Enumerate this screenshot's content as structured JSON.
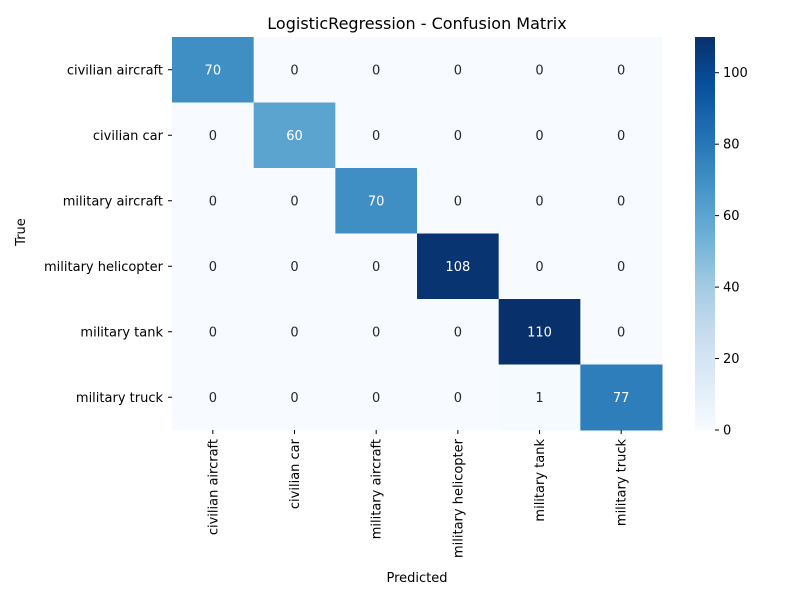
{
  "chart_data": {
    "type": "heatmap",
    "title": "LogisticRegression - Confusion Matrix",
    "xlabel": "Predicted",
    "ylabel": "True",
    "x_categories": [
      "civilian aircraft",
      "civilian car",
      "military aircraft",
      "military helicopter",
      "military tank",
      "military truck"
    ],
    "y_categories": [
      "civilian aircraft",
      "civilian car",
      "military aircraft",
      "military helicopter",
      "military tank",
      "military truck"
    ],
    "values": [
      [
        70,
        0,
        0,
        0,
        0,
        0
      ],
      [
        0,
        60,
        0,
        0,
        0,
        0
      ],
      [
        0,
        0,
        70,
        0,
        0,
        0
      ],
      [
        0,
        0,
        0,
        108,
        0,
        0
      ],
      [
        0,
        0,
        0,
        0,
        110,
        0
      ],
      [
        0,
        0,
        0,
        0,
        1,
        77
      ]
    ],
    "colormap": "Blues",
    "color_range": [
      0,
      110
    ],
    "colorbar_ticks": [
      0,
      20,
      40,
      60,
      80,
      100
    ]
  }
}
